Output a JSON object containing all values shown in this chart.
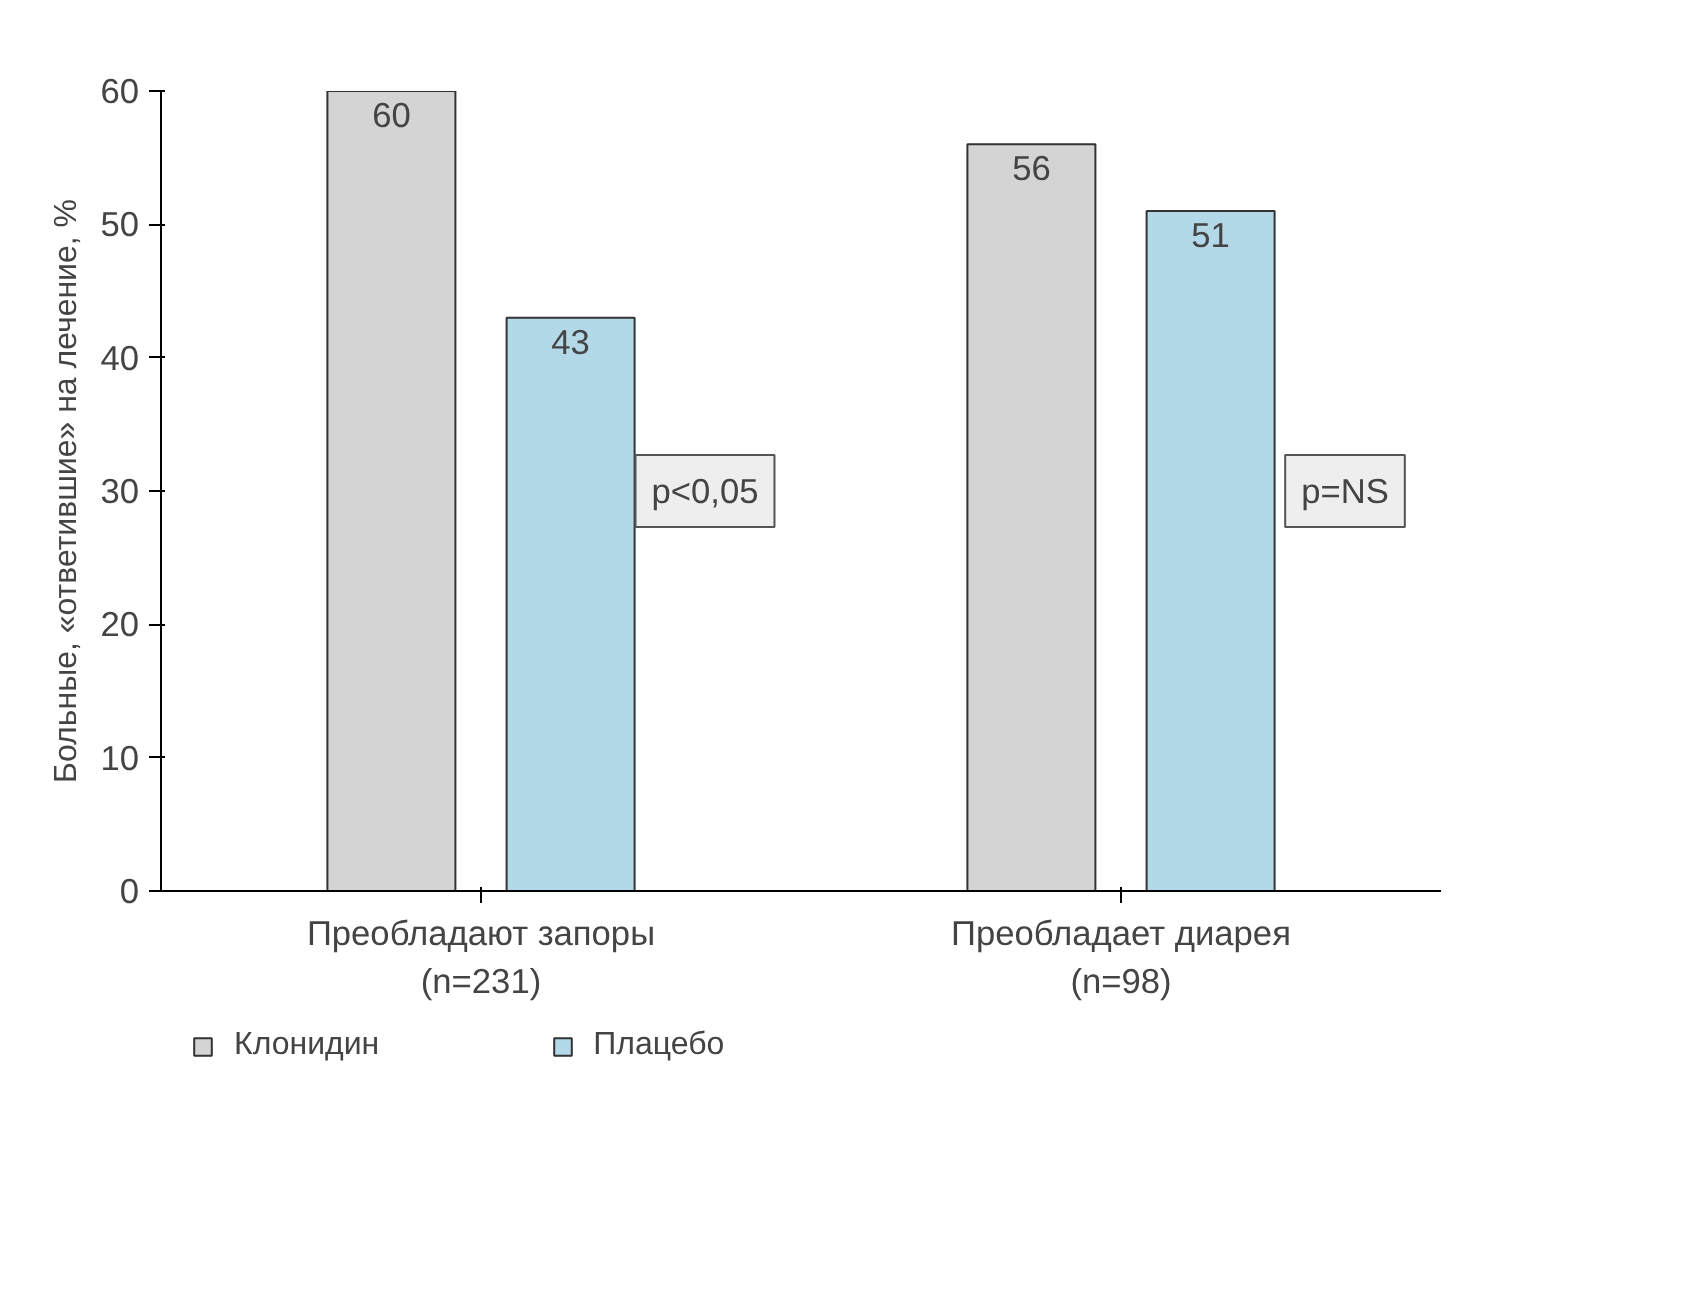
{
  "chart_data": {
    "type": "bar",
    "ylabel": "Больные, «ответившие» на лечение, %",
    "categories": [
      "Преобладают запоры\n(n=231)",
      "Преобладает диарея\n(n=98)"
    ],
    "series": [
      {
        "name": "Клонидин",
        "color": "#d4d4d4",
        "values": [
          60,
          56
        ]
      },
      {
        "name": "Плацебо",
        "color": "#b3d9e8",
        "values": [
          43,
          51
        ]
      }
    ],
    "ylim": [
      0,
      60
    ],
    "yticks": [
      0,
      10,
      20,
      30,
      40,
      50,
      60
    ],
    "data_labels": true,
    "grid": false,
    "legend": "bottom",
    "annotations": [
      "p<0,05",
      "p=NS"
    ]
  }
}
